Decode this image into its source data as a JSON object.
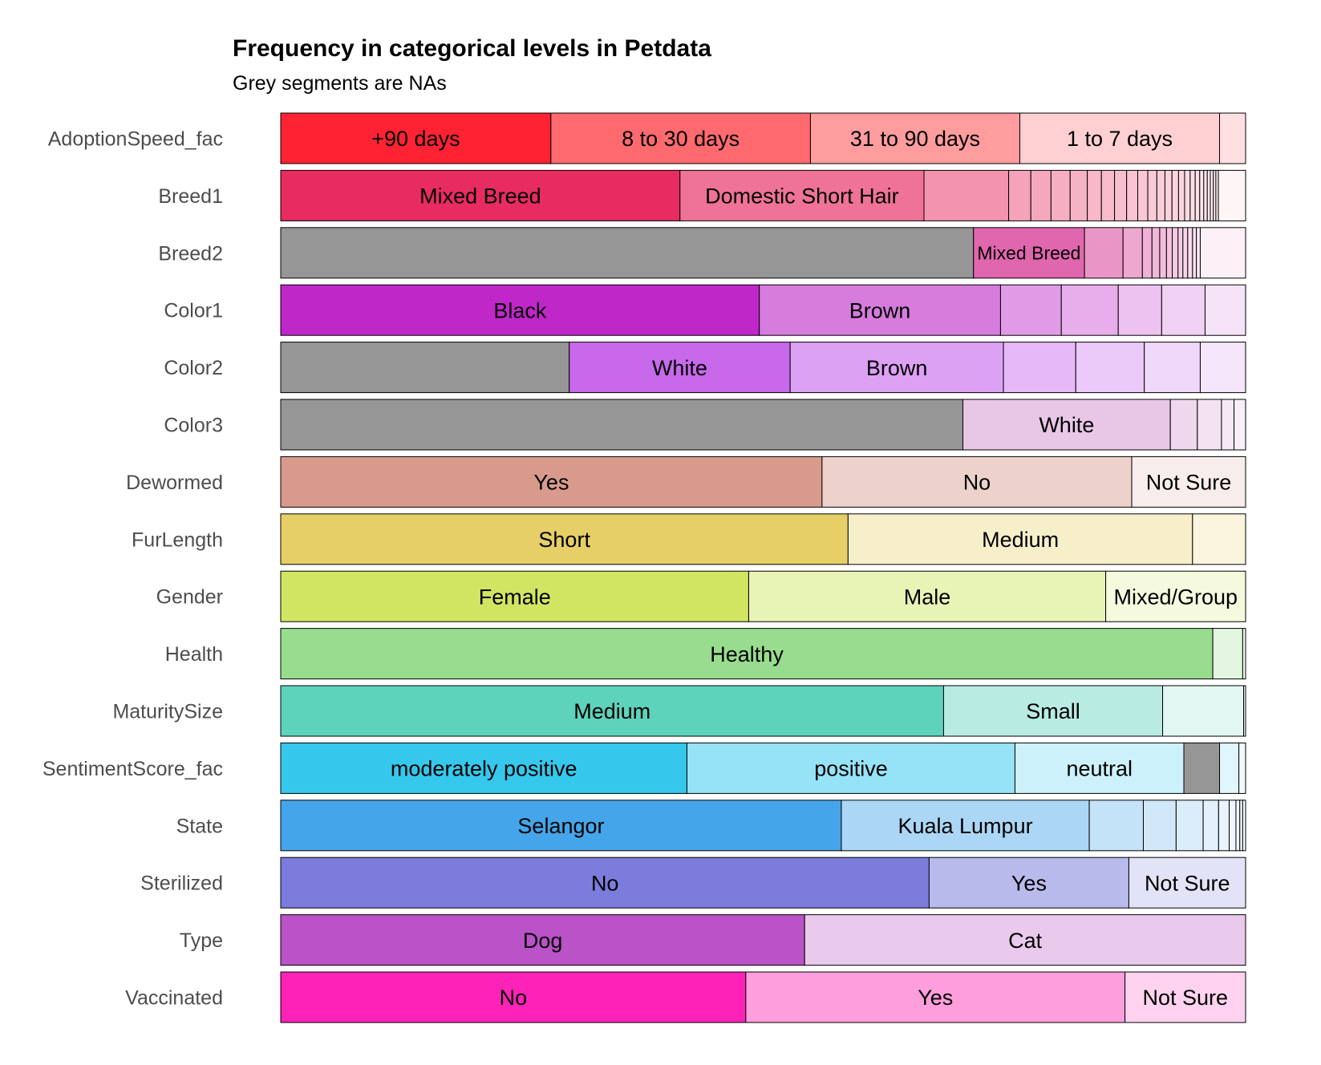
{
  "title": "Frequency in categorical levels in Petdata",
  "subtitle": "Grey segments are NAs",
  "colors": {
    "na": "#969696",
    "border": "#000000",
    "label_text": "#4d4d4d"
  },
  "chart_data": {
    "type": "bar",
    "orientation": "horizontal",
    "stacked": true,
    "normalized": true,
    "x_unit": "proportion",
    "xlim": [
      0,
      1
    ],
    "grid": false,
    "categories": [
      "AdoptionSpeed_fac",
      "Breed1",
      "Breed2",
      "Color1",
      "Color2",
      "Color3",
      "Dewormed",
      "FurLength",
      "Gender",
      "Health",
      "MaturitySize",
      "SentimentScore_fac",
      "State",
      "Sterilized",
      "Type",
      "Vaccinated"
    ],
    "rows": [
      {
        "variable": "AdoptionSpeed_fac",
        "segments": [
          {
            "label": "+90 days",
            "value": 0.28,
            "color": "#ff2233"
          },
          {
            "label": "8 to 30 days",
            "value": 0.269,
            "color": "#ff6a6f"
          },
          {
            "label": "31 to 90 days",
            "value": 0.217,
            "color": "#ff9c9e"
          },
          {
            "label": "1 to 7 days",
            "value": 0.207,
            "color": "#ffd0d2"
          },
          {
            "label": "",
            "value": 0.027,
            "color": "#ffe0e2"
          }
        ]
      },
      {
        "variable": "Breed1",
        "segments": [
          {
            "label": "Mixed Breed",
            "value": 0.396,
            "color": "#e82b61"
          },
          {
            "label": "Domestic Short Hair",
            "value": 0.242,
            "color": "#ef7396"
          },
          {
            "label": "",
            "value": 0.084,
            "color": "#f393ad"
          },
          {
            "label": "",
            "value": 0.022,
            "color": "#f5a3ba"
          },
          {
            "label": "",
            "value": 0.02,
            "color": "#f5a8bd"
          },
          {
            "label": "",
            "value": 0.019,
            "color": "#f6aec2"
          },
          {
            "label": "",
            "value": 0.017,
            "color": "#f7b3c6"
          },
          {
            "label": "",
            "value": 0.014,
            "color": "#f7b8c9"
          },
          {
            "label": "",
            "value": 0.013,
            "color": "#f8bccc"
          },
          {
            "label": "",
            "value": 0.012,
            "color": "#f8c0cf"
          },
          {
            "label": "",
            "value": 0.011,
            "color": "#f9c3d2"
          },
          {
            "label": "",
            "value": 0.01,
            "color": "#f9c7d5"
          },
          {
            "label": "",
            "value": 0.009,
            "color": "#facad7"
          },
          {
            "label": "",
            "value": 0.008,
            "color": "#facdda"
          },
          {
            "label": "",
            "value": 0.007,
            "color": "#fbd1dc"
          },
          {
            "label": "",
            "value": 0.0065,
            "color": "#fbd4de"
          },
          {
            "label": "",
            "value": 0.006,
            "color": "#fbd7e0"
          },
          {
            "label": "",
            "value": 0.0055,
            "color": "#fcdae3"
          },
          {
            "label": "",
            "value": 0.005,
            "color": "#fcdde5"
          },
          {
            "label": "",
            "value": 0.0045,
            "color": "#fce0e7"
          },
          {
            "label": "",
            "value": 0.004,
            "color": "#fde3ea"
          },
          {
            "label": "",
            "value": 0.0035,
            "color": "#fde6ec"
          },
          {
            "label": "",
            "value": 0.003,
            "color": "#fde9ee"
          },
          {
            "label": "",
            "value": 0.003,
            "color": "#feecf1"
          },
          {
            "label": "",
            "value": 0.0025,
            "color": "#feeff3"
          },
          {
            "label": "",
            "value": 0.0025,
            "color": "#fff2f5"
          },
          {
            "label": "",
            "value": 0.027,
            "color": "#fff5f7"
          }
        ]
      },
      {
        "variable": "Breed2",
        "segments": [
          {
            "label": "",
            "value": 0.718,
            "color": "#969696"
          },
          {
            "label": "Mixed Breed",
            "value": 0.115,
            "color": "#e066ad"
          },
          {
            "label": "",
            "value": 0.04,
            "color": "#e996c6"
          },
          {
            "label": "",
            "value": 0.02,
            "color": "#eda8d0"
          },
          {
            "label": "",
            "value": 0.01,
            "color": "#efb1d5"
          },
          {
            "label": "",
            "value": 0.008,
            "color": "#f0b7d8"
          },
          {
            "label": "",
            "value": 0.007,
            "color": "#f2bddc"
          },
          {
            "label": "",
            "value": 0.006,
            "color": "#f3c3df"
          },
          {
            "label": "",
            "value": 0.006,
            "color": "#f4c9e2"
          },
          {
            "label": "",
            "value": 0.005,
            "color": "#f6cfe6"
          },
          {
            "label": "",
            "value": 0.005,
            "color": "#f7d5e9"
          },
          {
            "label": "",
            "value": 0.005,
            "color": "#f8dbec"
          },
          {
            "label": "",
            "value": 0.004,
            "color": "#f9e1ef"
          },
          {
            "label": "",
            "value": 0.004,
            "color": "#fbe7f3"
          },
          {
            "label": "",
            "value": 0.047,
            "color": "#fdf0f7"
          }
        ]
      },
      {
        "variable": "Color1",
        "segments": [
          {
            "label": "Black",
            "value": 0.496,
            "color": "#bf27c9"
          },
          {
            "label": "Brown",
            "value": 0.25,
            "color": "#d57cdd"
          },
          {
            "label": "",
            "value": 0.063,
            "color": "#e19be6"
          },
          {
            "label": "",
            "value": 0.059,
            "color": "#e7aeeb"
          },
          {
            "label": "",
            "value": 0.045,
            "color": "#edc2f0"
          },
          {
            "label": "",
            "value": 0.045,
            "color": "#f1d1f3"
          },
          {
            "label": "",
            "value": 0.042,
            "color": "#f6e3f8"
          }
        ]
      },
      {
        "variable": "Color2",
        "segments": [
          {
            "label": "",
            "value": 0.299,
            "color": "#969696"
          },
          {
            "label": "White",
            "value": 0.229,
            "color": "#c769ea"
          },
          {
            "label": "Brown",
            "value": 0.221,
            "color": "#dda1f4"
          },
          {
            "label": "",
            "value": 0.075,
            "color": "#e6b8f7"
          },
          {
            "label": "",
            "value": 0.071,
            "color": "#ebc9f9"
          },
          {
            "label": "",
            "value": 0.058,
            "color": "#f0d8fa"
          },
          {
            "label": "",
            "value": 0.047,
            "color": "#f5e6fc"
          }
        ]
      },
      {
        "variable": "Color3",
        "segments": [
          {
            "label": "",
            "value": 0.707,
            "color": "#969696"
          },
          {
            "label": "White",
            "value": 0.215,
            "color": "#e8c6e6"
          },
          {
            "label": "",
            "value": 0.028,
            "color": "#efd8ee"
          },
          {
            "label": "",
            "value": 0.025,
            "color": "#f3e2f2"
          },
          {
            "label": "",
            "value": 0.013,
            "color": "#f6e9f5"
          },
          {
            "label": "",
            "value": 0.012,
            "color": "#f9eff8"
          }
        ]
      },
      {
        "variable": "Dewormed",
        "segments": [
          {
            "label": "Yes",
            "value": 0.561,
            "color": "#d89b8b"
          },
          {
            "label": "No",
            "value": 0.321,
            "color": "#ecd2cb"
          },
          {
            "label": "Not Sure",
            "value": 0.118,
            "color": "#f7eeeb"
          }
        ]
      },
      {
        "variable": "FurLength",
        "segments": [
          {
            "label": "Short",
            "value": 0.588,
            "color": "#e5cf66"
          },
          {
            "label": "Medium",
            "value": 0.357,
            "color": "#f6efca"
          },
          {
            "label": "",
            "value": 0.055,
            "color": "#faf5dc"
          }
        ]
      },
      {
        "variable": "Gender",
        "segments": [
          {
            "label": "Female",
            "value": 0.485,
            "color": "#d2e563"
          },
          {
            "label": "Male",
            "value": 0.37,
            "color": "#e8f3b6"
          },
          {
            "label": "Mixed/Group",
            "value": 0.145,
            "color": "#f5fadf"
          }
        ]
      },
      {
        "variable": "Health",
        "segments": [
          {
            "label": "Healthy",
            "value": 0.966,
            "color": "#98dd8e"
          },
          {
            "label": "",
            "value": 0.031,
            "color": "#e3f6df"
          },
          {
            "label": "",
            "value": 0.003,
            "color": "#f2fbf0"
          }
        ]
      },
      {
        "variable": "MaturitySize",
        "segments": [
          {
            "label": "Medium",
            "value": 0.687,
            "color": "#5ed3bb"
          },
          {
            "label": "Small",
            "value": 0.227,
            "color": "#b8ece2"
          },
          {
            "label": "",
            "value": 0.084,
            "color": "#e2f7f2"
          },
          {
            "label": "",
            "value": 0.002,
            "color": "#f0fbf8"
          }
        ]
      },
      {
        "variable": "SentimentScore_fac",
        "segments": [
          {
            "label": "moderately positive",
            "value": 0.421,
            "color": "#35c8ec"
          },
          {
            "label": "positive",
            "value": 0.34,
            "color": "#95e3f5"
          },
          {
            "label": "neutral",
            "value": 0.175,
            "color": "#cdf1fa"
          },
          {
            "label": "",
            "value": 0.037,
            "color": "#969696"
          },
          {
            "label": "",
            "value": 0.02,
            "color": "#e1f6fc"
          },
          {
            "label": "",
            "value": 0.007,
            "color": "#eefafd"
          }
        ]
      },
      {
        "variable": "State",
        "segments": [
          {
            "label": "Selangor",
            "value": 0.581,
            "color": "#45a5ea"
          },
          {
            "label": "Kuala Lumpur",
            "value": 0.257,
            "color": "#acd6f5"
          },
          {
            "label": "",
            "value": 0.056,
            "color": "#c4e2f8"
          },
          {
            "label": "",
            "value": 0.034,
            "color": "#d1e8f9"
          },
          {
            "label": "",
            "value": 0.028,
            "color": "#dbedfa"
          },
          {
            "label": "",
            "value": 0.016,
            "color": "#e3f1fb"
          },
          {
            "label": "",
            "value": 0.011,
            "color": "#e9f4fc"
          },
          {
            "label": "",
            "value": 0.007,
            "color": "#eef7fd"
          },
          {
            "label": "",
            "value": 0.004,
            "color": "#f3f9fd"
          },
          {
            "label": "",
            "value": 0.003,
            "color": "#f7fbfe"
          },
          {
            "label": "",
            "value": 0.003,
            "color": "#fafdff"
          }
        ]
      },
      {
        "variable": "Sterilized",
        "segments": [
          {
            "label": "No",
            "value": 0.672,
            "color": "#7b7cdb"
          },
          {
            "label": "Yes",
            "value": 0.207,
            "color": "#b9baec"
          },
          {
            "label": "Not Sure",
            "value": 0.121,
            "color": "#e3e3f7"
          }
        ]
      },
      {
        "variable": "Type",
        "segments": [
          {
            "label": "Dog",
            "value": 0.543,
            "color": "#ba52c8"
          },
          {
            "label": "Cat",
            "value": 0.457,
            "color": "#e9c9ec"
          }
        ]
      },
      {
        "variable": "Vaccinated",
        "segments": [
          {
            "label": "No",
            "value": 0.482,
            "color": "#ff22b6"
          },
          {
            "label": "Yes",
            "value": 0.393,
            "color": "#ff9edd"
          },
          {
            "label": "Not Sure",
            "value": 0.125,
            "color": "#ffd3ef"
          }
        ]
      }
    ]
  }
}
